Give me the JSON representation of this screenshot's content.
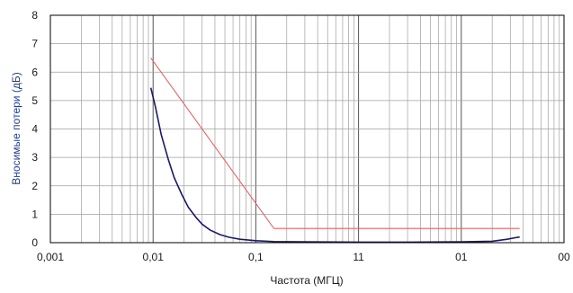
{
  "chart_data": {
    "type": "line",
    "xlabel": "Частота (МГЦ)",
    "ylabel": "Вносимые потери  (дБ)",
    "x_scale": "log",
    "xlim": [
      0.001,
      100
    ],
    "ylim": [
      0,
      8
    ],
    "grid": true,
    "x_tick_labels": [
      "0,001",
      "0,01",
      "0,1",
      "11",
      "01",
      "00"
    ],
    "y_tick_labels": [
      "0",
      "1",
      "2",
      "3",
      "4",
      "5",
      "6",
      "7",
      "8"
    ],
    "series": [
      {
        "color": "#1a1a66",
        "points": [
          [
            0.0095,
            5.45
          ],
          [
            0.0105,
            4.8
          ],
          [
            0.012,
            3.8
          ],
          [
            0.014,
            2.95
          ],
          [
            0.016,
            2.3
          ],
          [
            0.019,
            1.7
          ],
          [
            0.022,
            1.25
          ],
          [
            0.026,
            0.9
          ],
          [
            0.03,
            0.65
          ],
          [
            0.036,
            0.44
          ],
          [
            0.045,
            0.28
          ],
          [
            0.055,
            0.19
          ],
          [
            0.07,
            0.12
          ],
          [
            0.1,
            0.07
          ],
          [
            0.15,
            0.04
          ],
          [
            0.3,
            0.03
          ],
          [
            1,
            0.02
          ],
          [
            3,
            0.02
          ],
          [
            10,
            0.03
          ],
          [
            20,
            0.05
          ],
          [
            28,
            0.12
          ],
          [
            33,
            0.17
          ],
          [
            37,
            0.2
          ]
        ]
      },
      {
        "color": "#e06666",
        "points": [
          [
            0.0095,
            6.5
          ],
          [
            0.15,
            0.5
          ],
          [
            37,
            0.5
          ]
        ]
      }
    ]
  },
  "colors": {
    "axis_title": "#1f3f8f",
    "grid": "#a0a0a0",
    "axes": "#000000"
  }
}
